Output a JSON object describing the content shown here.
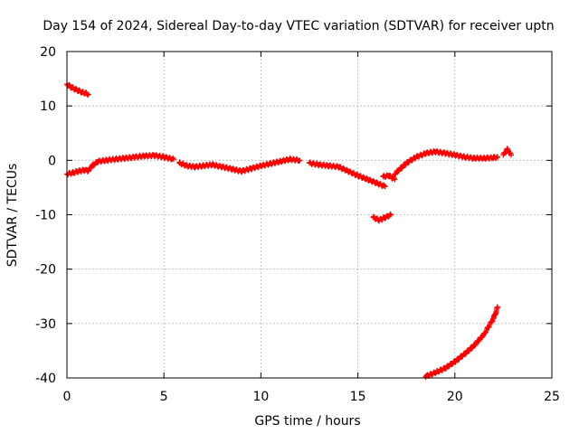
{
  "chart_data": {
    "type": "scatter",
    "title": "Day 154 of 2024, Sidereal Day-to-day VTEC variation (SDTVAR) for receiver uptn",
    "xlabel": "GPS time / hours",
    "ylabel": "SDTVAR / TECUs",
    "xlim": [
      0,
      25
    ],
    "ylim": [
      -40,
      20
    ],
    "xticks": [
      0,
      5,
      10,
      15,
      20,
      25
    ],
    "yticks": [
      -40,
      -30,
      -20,
      -10,
      0,
      10,
      20
    ],
    "xtick_labels": [
      "0",
      "5",
      "10",
      "15",
      "20",
      "25"
    ],
    "ytick_labels": [
      "-40",
      "-30",
      "-20",
      "-10",
      "0",
      "10",
      "20"
    ],
    "grid": true,
    "marker": "+",
    "series": [
      {
        "name": "SDTVAR",
        "color": "#ff0000",
        "segments": [
          {
            "points": [
              [
                0.0,
                14.0
              ],
              [
                0.2,
                13.5
              ],
              [
                0.4,
                13.1
              ],
              [
                0.6,
                12.8
              ],
              [
                0.8,
                12.5
              ],
              [
                1.0,
                12.3
              ],
              [
                1.1,
                12.1
              ]
            ]
          },
          {
            "points": [
              [
                0.0,
                -2.5
              ],
              [
                0.3,
                -2.3
              ],
              [
                0.6,
                -2.0
              ],
              [
                0.9,
                -1.8
              ],
              [
                1.1,
                -1.9
              ],
              [
                1.3,
                -1.0
              ],
              [
                1.6,
                -0.2
              ],
              [
                2.0,
                0.0
              ],
              [
                2.5,
                0.2
              ],
              [
                3.0,
                0.4
              ],
              [
                3.5,
                0.6
              ],
              [
                4.0,
                0.8
              ],
              [
                4.5,
                0.9
              ],
              [
                5.0,
                0.6
              ],
              [
                5.5,
                0.2
              ]
            ]
          },
          {
            "points": [
              [
                5.8,
                -0.5
              ],
              [
                6.2,
                -1.0
              ],
              [
                6.6,
                -1.2
              ],
              [
                7.0,
                -1.0
              ],
              [
                7.5,
                -0.8
              ],
              [
                8.0,
                -1.2
              ],
              [
                8.5,
                -1.6
              ],
              [
                9.0,
                -2.0
              ],
              [
                9.5,
                -1.5
              ],
              [
                10.0,
                -1.0
              ],
              [
                10.5,
                -0.6
              ],
              [
                11.0,
                -0.2
              ],
              [
                11.5,
                0.2
              ],
              [
                12.0,
                0.0
              ]
            ]
          },
          {
            "points": [
              [
                12.5,
                -0.5
              ],
              [
                13.0,
                -0.8
              ],
              [
                13.5,
                -1.0
              ],
              [
                14.0,
                -1.2
              ],
              [
                14.5,
                -2.0
              ],
              [
                15.0,
                -2.8
              ],
              [
                15.5,
                -3.5
              ],
              [
                16.0,
                -4.2
              ],
              [
                16.4,
                -4.8
              ]
            ]
          },
          {
            "points": [
              [
                16.3,
                -3.0
              ],
              [
                16.6,
                -2.8
              ],
              [
                16.9,
                -3.5
              ]
            ]
          },
          {
            "points": [
              [
                15.8,
                -10.5
              ],
              [
                16.1,
                -11.0
              ],
              [
                16.4,
                -10.5
              ],
              [
                16.7,
                -10.0
              ]
            ]
          },
          {
            "points": [
              [
                16.9,
                -2.5
              ],
              [
                17.2,
                -1.5
              ],
              [
                17.5,
                -0.5
              ],
              [
                18.0,
                0.6
              ],
              [
                18.5,
                1.3
              ],
              [
                19.0,
                1.6
              ],
              [
                19.5,
                1.3
              ],
              [
                20.0,
                1.0
              ],
              [
                20.5,
                0.6
              ],
              [
                21.0,
                0.4
              ],
              [
                21.5,
                0.4
              ],
              [
                22.0,
                0.5
              ],
              [
                22.2,
                0.6
              ]
            ]
          },
          {
            "points": [
              [
                22.5,
                1.0
              ],
              [
                22.7,
                2.0
              ],
              [
                22.9,
                1.0
              ]
            ]
          },
          {
            "points": [
              [
                18.5,
                -39.7
              ],
              [
                19.0,
                -39.0
              ],
              [
                19.5,
                -38.2
              ],
              [
                20.0,
                -37.0
              ],
              [
                20.5,
                -35.6
              ],
              [
                21.0,
                -34.0
              ],
              [
                21.5,
                -32.0
              ],
              [
                22.0,
                -29.0
              ],
              [
                22.2,
                -27.0
              ]
            ]
          }
        ]
      }
    ]
  }
}
